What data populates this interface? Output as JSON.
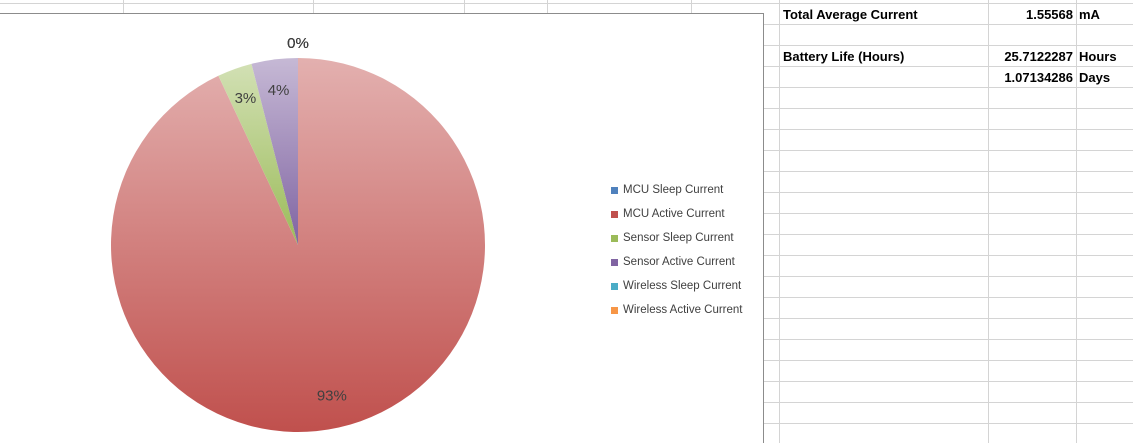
{
  "chart_data": {
    "type": "pie",
    "title": "",
    "slices": [
      {
        "label": "MCU Sleep Current",
        "value": 0.0,
        "pct_label": "0%",
        "color": "#4f81bd"
      },
      {
        "label": "MCU Active Current",
        "value": 93,
        "pct_label": "93%",
        "color": "#c0504d"
      },
      {
        "label": "Sensor Sleep Current",
        "value": 3,
        "pct_label": "3%",
        "color": "#9bbb59"
      },
      {
        "label": "Sensor Active Current",
        "value": 4,
        "pct_label": "4%",
        "color": "#8064a2"
      },
      {
        "label": "Wireless Sleep Current",
        "value": 0.0,
        "pct_label": "0%",
        "color": "#4bacc6"
      },
      {
        "label": "Wireless Active Current",
        "value": 0.0,
        "pct_label": "0%",
        "color": "#f79646"
      }
    ],
    "legend_position": "right"
  },
  "sheet": {
    "total_avg_label": "Total Average Current",
    "total_avg_value": "1.55568",
    "total_avg_unit": "mA",
    "battery_label": "Battery Life (Hours)",
    "battery_hours_value": "25.7122287",
    "battery_hours_unit": "Hours",
    "battery_days_value": "1.07134286",
    "battery_days_unit": "Days"
  }
}
